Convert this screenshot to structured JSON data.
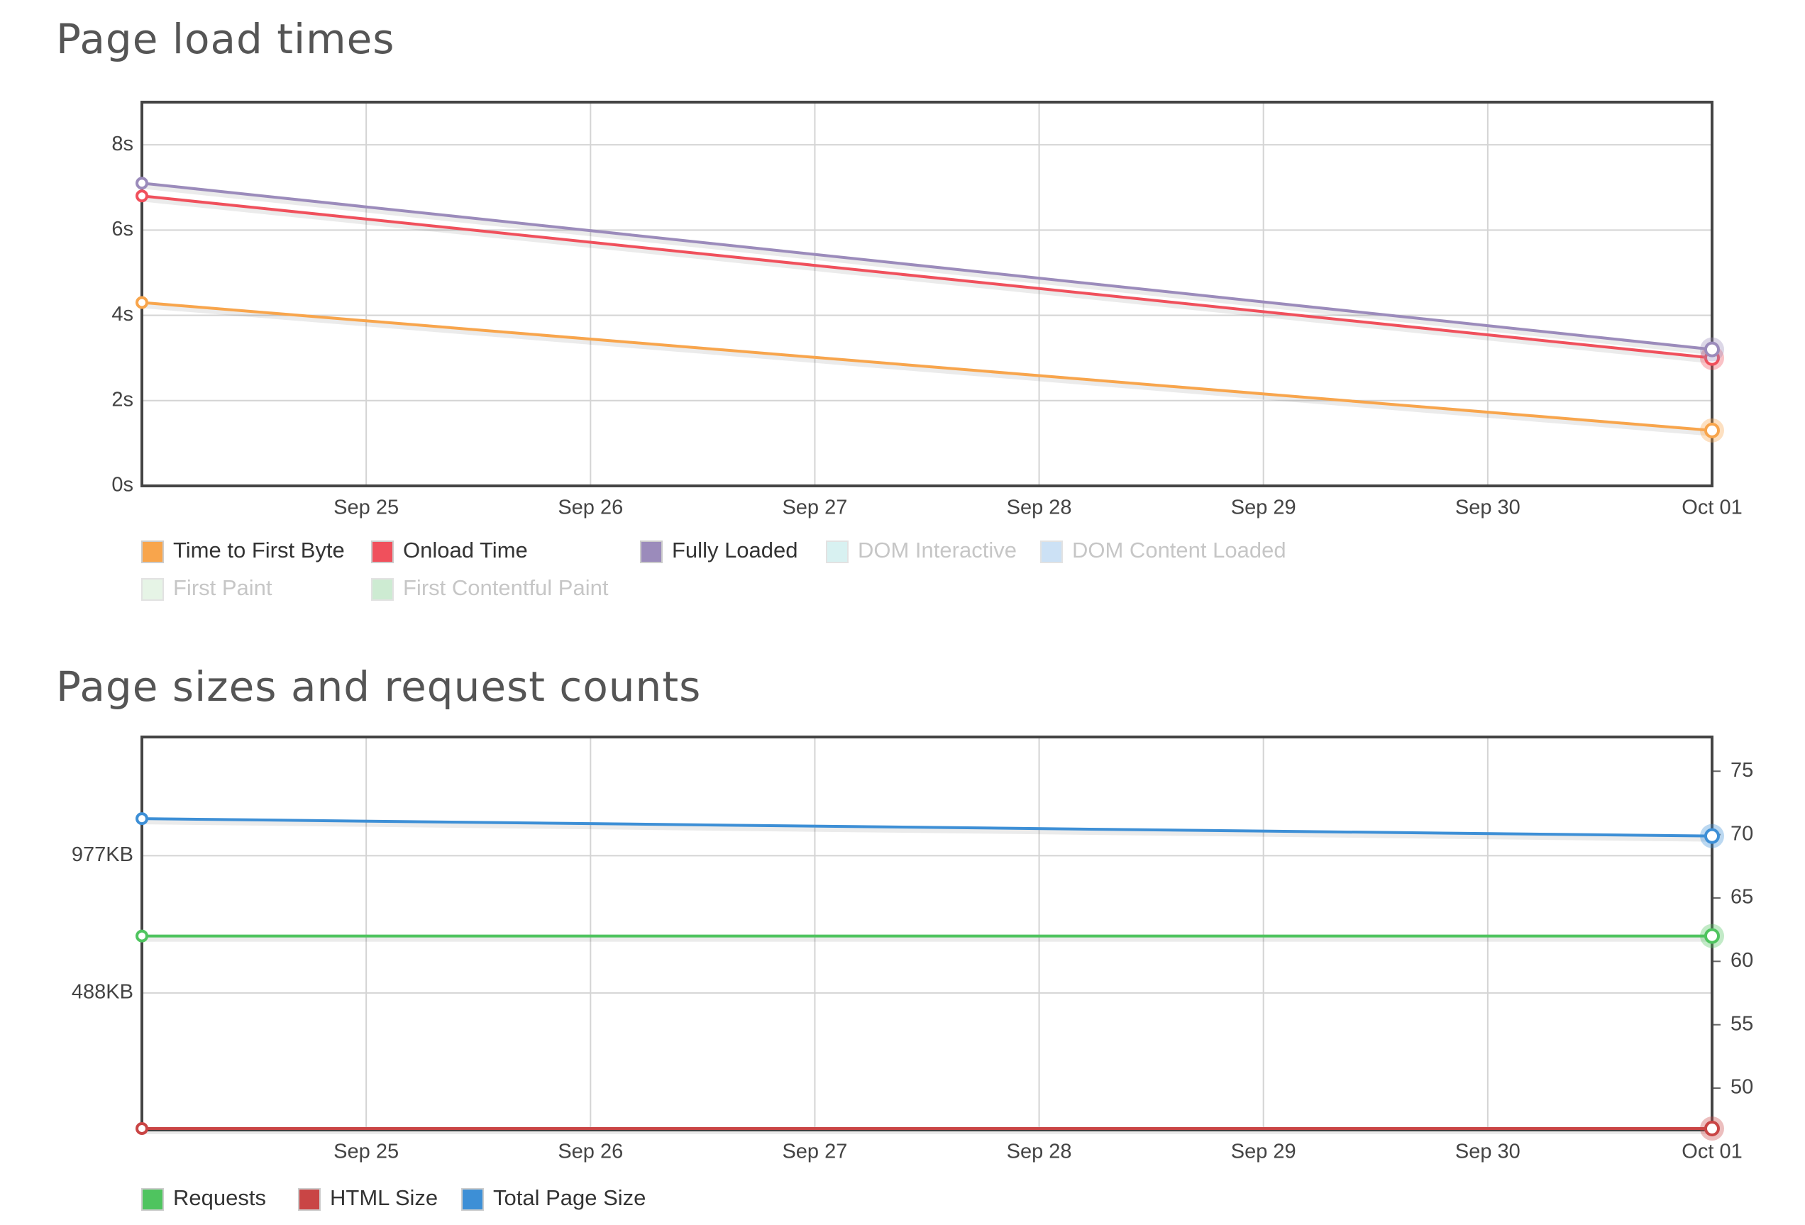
{
  "chart_data": [
    {
      "type": "line",
      "title": "Page load times",
      "x": [
        "Sep 24",
        "Oct 01"
      ],
      "xlim": [
        "Sep 24",
        "Oct 01"
      ],
      "xticks": [
        "Sep 25",
        "Sep 26",
        "Sep 27",
        "Sep 28",
        "Sep 29",
        "Sep 30",
        "Oct 01"
      ],
      "ylim": [
        0,
        9
      ],
      "yticks": [
        {
          "value": 0,
          "label": "0s"
        },
        {
          "value": 2,
          "label": "2s"
        },
        {
          "value": 4,
          "label": "4s"
        },
        {
          "value": 6,
          "label": "6s"
        },
        {
          "value": 8,
          "label": "8s"
        }
      ],
      "grid": true,
      "series": [
        {
          "name": "Time to First Byte",
          "color": "#f8a54c",
          "values": [
            4.3,
            1.3
          ],
          "visible": true
        },
        {
          "name": "Onload Time",
          "color": "#f0505c",
          "values": [
            6.8,
            3.0
          ],
          "visible": true
        },
        {
          "name": "Fully Loaded",
          "color": "#9b8bbb",
          "values": [
            7.1,
            3.2
          ],
          "visible": true
        },
        {
          "name": "DOM Interactive",
          "color": "#b9e7e6",
          "values": [
            null,
            null
          ],
          "visible": false
        },
        {
          "name": "DOM Content Loaded",
          "color": "#a3caee",
          "values": [
            null,
            null
          ],
          "visible": false
        },
        {
          "name": "First Paint",
          "color": "#d3ecd3",
          "values": [
            null,
            null
          ],
          "visible": false
        },
        {
          "name": "First Contentful Paint",
          "color": "#a5dcaf",
          "values": [
            null,
            null
          ],
          "visible": false
        }
      ]
    },
    {
      "type": "line",
      "title": "Page sizes and request counts",
      "x": [
        "Sep 24",
        "Oct 01"
      ],
      "xlim": [
        "Sep 24",
        "Oct 01"
      ],
      "xticks": [
        "Sep 25",
        "Sep 26",
        "Sep 27",
        "Sep 28",
        "Sep 29",
        "Sep 30",
        "Oct 01"
      ],
      "ylim": [
        0,
        1400
      ],
      "yticks": [
        {
          "value": 488,
          "label": "488KB"
        },
        {
          "value": 977,
          "label": "977KB"
        }
      ],
      "y2lim": [
        46.7,
        77.7
      ],
      "y2ticks": [
        50,
        55,
        60,
        65,
        70,
        75
      ],
      "grid": true,
      "series": [
        {
          "name": "Requests",
          "color": "#4fc45f",
          "values": [
            62,
            62
          ],
          "axis": "y2",
          "visible": true
        },
        {
          "name": "HTML Size",
          "color": "#c94545",
          "values": [
            5,
            5
          ],
          "visible": true
        },
        {
          "name": "Total Page Size",
          "color": "#3d8fd6",
          "values": [
            1109,
            1047
          ],
          "visible": true
        }
      ]
    }
  ]
}
